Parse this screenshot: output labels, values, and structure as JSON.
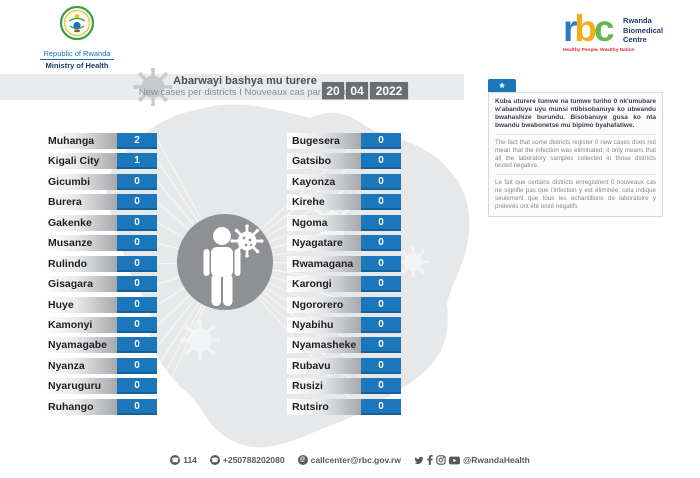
{
  "header": {
    "gov_logo": {
      "country": "Republic of Rwanda",
      "ministry": "Ministry of Health"
    },
    "rbc_logo": {
      "letter_r": "r",
      "letter_b": "b",
      "letter_c": "c",
      "name_line1": "Rwanda",
      "name_line2": "Biomedical",
      "name_line3": "Centre",
      "tagline": "Healthy People, Wealthy Nation",
      "colors": {
        "r": "#2f7bc1",
        "b": "#f3ae1a",
        "c": "#65b84e",
        "name": "#1d3c6e",
        "tagline": "#cf2e36"
      }
    }
  },
  "banner": {
    "title": "Abarwayi bashya mu turere",
    "subtitle": "New cases per districts  I  Nouveaux cas par district",
    "date": {
      "day": "20",
      "month": "04",
      "year": "2022"
    }
  },
  "note_panel": {
    "tab_symbol": "*",
    "kinyarwanda": "Kuba uturere tumwe na tumwe turiho 0 nk'umubare w'abanduye uyu munsi ntibisobanuye ko ubwandu bwahashize burundu. Bisobanuye gusa ko nta bwandu bwabonetse mu bipimo byahafatiwe.",
    "english": "The fact that some districts register 0 new cases does not mean that the infection was eliminated; it only means that all the laboratory samples collected in those districts tested negative.",
    "french": "Le fait que certains districts enregistrent 0 nouveaux cas ne signifie pas que l'infection y est éliminée; cela indique seulement que tous les échantillons de laboratoire y prélevés ont été testé négatifs"
  },
  "districts": {
    "left": [
      {
        "name": "Muhanga",
        "value": "2"
      },
      {
        "name": "Kigali City",
        "value": "1"
      },
      {
        "name": "Gicumbi",
        "value": "0"
      },
      {
        "name": "Burera",
        "value": "0"
      },
      {
        "name": "Gakenke",
        "value": "0"
      },
      {
        "name": "Musanze",
        "value": "0"
      },
      {
        "name": "Rulindo",
        "value": "0"
      },
      {
        "name": "Gisagara",
        "value": "0"
      },
      {
        "name": "Huye",
        "value": "0"
      },
      {
        "name": "Kamonyi",
        "value": "0"
      },
      {
        "name": "Nyamagabe",
        "value": "0"
      },
      {
        "name": "Nyanza",
        "value": "0"
      },
      {
        "name": "Nyaruguru",
        "value": "0"
      },
      {
        "name": "Ruhango",
        "value": "0"
      }
    ],
    "right": [
      {
        "name": "Bugesera",
        "value": "0"
      },
      {
        "name": "Gatsibo",
        "value": "0"
      },
      {
        "name": "Kayonza",
        "value": "0"
      },
      {
        "name": "Kirehe",
        "value": "0"
      },
      {
        "name": "Ngoma",
        "value": "0"
      },
      {
        "name": "Nyagatare",
        "value": "0"
      },
      {
        "name": "Rwamagana",
        "value": "0"
      },
      {
        "name": "Karongi",
        "value": "0"
      },
      {
        "name": "Ngororero",
        "value": "0"
      },
      {
        "name": "Nyabihu",
        "value": "0"
      },
      {
        "name": "Nyamasheke",
        "value": "0"
      },
      {
        "name": "Rubavu",
        "value": "0"
      },
      {
        "name": "Rusizi",
        "value": "0"
      },
      {
        "name": "Rutsiro",
        "value": "0"
      }
    ]
  },
  "chart_data": {
    "type": "table",
    "title": "Abarwayi bashya mu turere — New cases per districts / Nouveaux cas par district",
    "date": "20/04/2022",
    "categories": [
      "Muhanga",
      "Kigali City",
      "Gicumbi",
      "Burera",
      "Gakenke",
      "Musanze",
      "Rulindo",
      "Gisagara",
      "Huye",
      "Kamonyi",
      "Nyamagabe",
      "Nyanza",
      "Nyaruguru",
      "Ruhango",
      "Bugesera",
      "Gatsibo",
      "Kayonza",
      "Kirehe",
      "Ngoma",
      "Nyagatare",
      "Rwamagana",
      "Karongi",
      "Ngororero",
      "Nyabihu",
      "Nyamasheke",
      "Rubavu",
      "Rusizi",
      "Rutsiro"
    ],
    "values": [
      2,
      1,
      0,
      0,
      0,
      0,
      0,
      0,
      0,
      0,
      0,
      0,
      0,
      0,
      0,
      0,
      0,
      0,
      0,
      0,
      0,
      0,
      0,
      0,
      0,
      0,
      0,
      0
    ],
    "value_label": "New cases",
    "accent_color": "#1b76bc"
  },
  "footer": {
    "phone_short": "114",
    "phone": "+250788202080",
    "email_icon_symbol": "@",
    "email": "callcenter@rbc.gov.rw",
    "social_handle": "@RwandaHealth"
  }
}
